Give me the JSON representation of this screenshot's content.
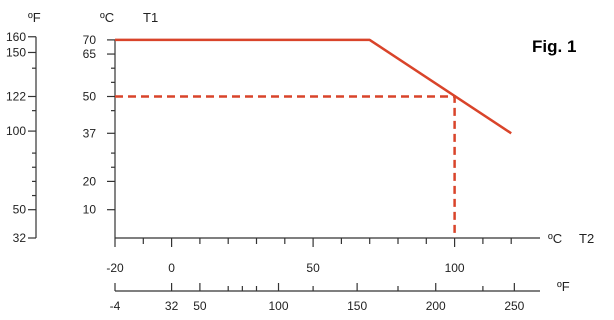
{
  "chart_data": {
    "type": "line",
    "figure_label": "Fig. 1",
    "x_axis_c": {
      "unit_label": "ºC",
      "variable_label": "T2",
      "range": [
        -20,
        125
      ],
      "major_ticks": [
        -20,
        0,
        50,
        100
      ],
      "minor_ticks": [
        -10,
        10,
        20,
        30,
        40,
        60,
        70,
        80,
        90,
        110,
        120
      ]
    },
    "x_axis_f": {
      "unit_label": "ºF",
      "ticks": [
        -4,
        32,
        50,
        100,
        150,
        200,
        250
      ]
    },
    "y_axis_c": {
      "unit_label": "ºC",
      "variable_label": "T1",
      "range": [
        0,
        70
      ],
      "ticks": [
        10,
        20,
        37,
        50,
        65,
        70
      ]
    },
    "y_axis_f": {
      "unit_label": "ºF",
      "ticks": [
        32,
        50,
        100,
        122,
        150,
        160
      ],
      "minor_ticks": [
        59,
        68,
        77,
        86,
        113,
        140
      ]
    },
    "series": [
      {
        "color": "#d9442a",
        "style": "solid",
        "points": [
          [
            -20,
            70
          ],
          [
            70,
            70
          ],
          [
            120,
            37
          ]
        ]
      }
    ],
    "reference_lines": [
      {
        "color": "#d9442a",
        "style": "dashed",
        "points": [
          [
            -20,
            50
          ],
          [
            100,
            50
          ],
          [
            100,
            0
          ]
        ]
      }
    ]
  }
}
